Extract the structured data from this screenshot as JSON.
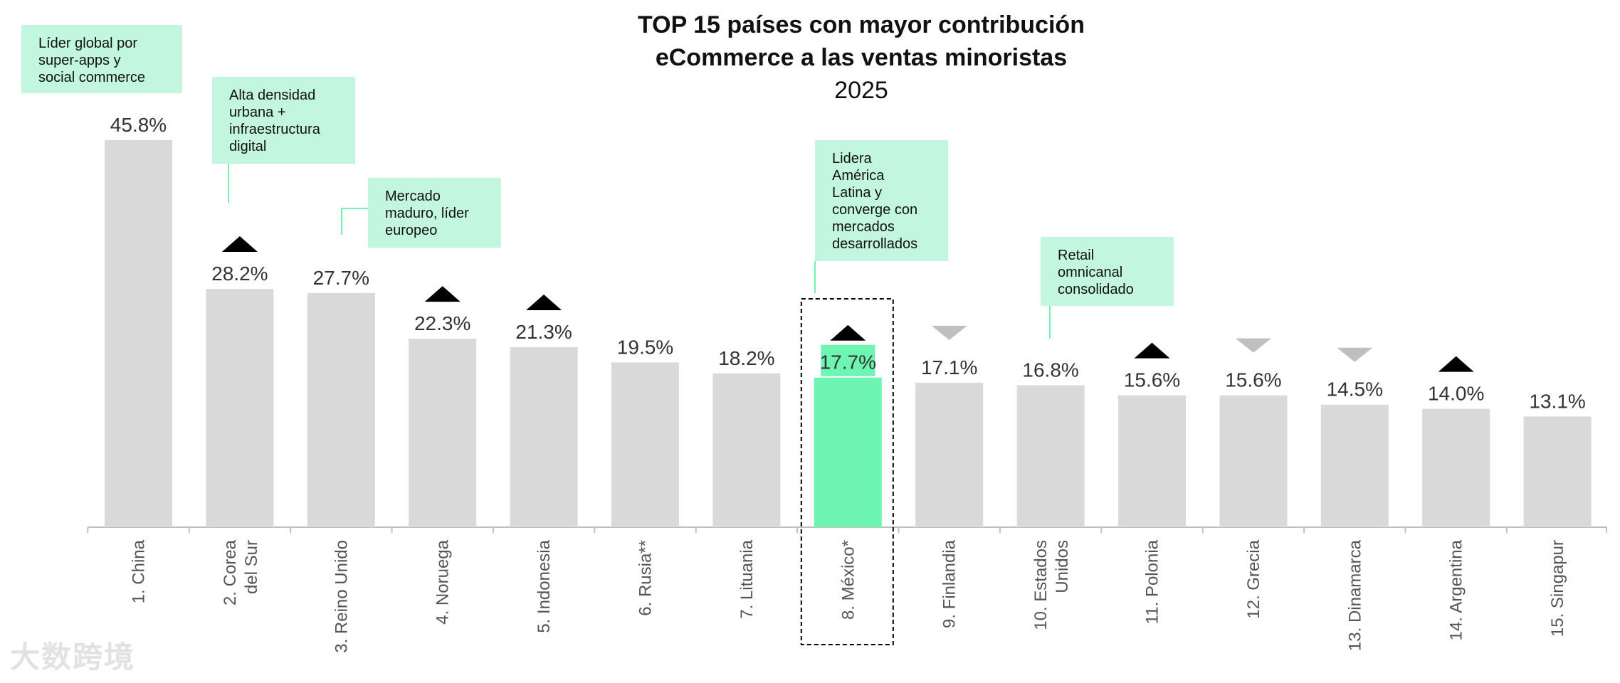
{
  "chart_data": {
    "type": "bar",
    "title": "TOP 15 países con mayor contribución eCommerce a las ventas minoristas",
    "title_lines": [
      "TOP 15 países con mayor contribución",
      "eCommerce a las ventas minoristas"
    ],
    "subtitle": "2025",
    "unit": "%",
    "ylim": [
      0,
      50
    ],
    "categories": [
      "1. China",
      "2. Corea del Sur",
      "3. Reino Unido",
      "4. Noruega",
      "5. Indonesia",
      "6. Rusia**",
      "7. Lituania",
      "8. México*",
      "9. Finlandia",
      "10. Estados Unidos",
      "11. Polonia",
      "12. Grecia",
      "13. Dinamarca",
      "14. Argentina",
      "15. Singapur"
    ],
    "values": [
      45.8,
      28.2,
      27.7,
      22.3,
      21.3,
      19.5,
      18.2,
      17.7,
      17.1,
      16.8,
      15.6,
      15.6,
      14.5,
      14.0,
      13.1
    ],
    "value_labels": [
      "45.8%",
      "28.2%",
      "27.7%",
      "22.3%",
      "21.3%",
      "19.5%",
      "18.2%",
      "17.7%",
      "17.1%",
      "16.8%",
      "15.6%",
      "15.6%",
      "14.5%",
      "14.0%",
      "13.1%"
    ],
    "trend": [
      "none",
      "up",
      "none",
      "up",
      "up",
      "none",
      "none",
      "up",
      "down",
      "none",
      "up",
      "down",
      "down",
      "up",
      "none"
    ],
    "highlight_index": 7,
    "colors": {
      "bar": "#d9d9d9",
      "highlight": "#6ef5b1",
      "up": "#000000",
      "down": "#bfbfbf",
      "note": "#c2f6de",
      "connector": "#6ef5b1"
    },
    "annotations": [
      {
        "bar": 0,
        "text": "Líder global por\nsuper-apps y\nsocial commerce"
      },
      {
        "bar": 1,
        "text": "Alta densidad\nurbana +\ninfraestructura\ndigital"
      },
      {
        "bar": 2,
        "text": "Mercado\nmaduro, líder\neuropeo"
      },
      {
        "bar": 7,
        "text": "Lidera\nAmérica\nLatina y\nconverge con\nmercados\ndesarrollados"
      },
      {
        "bar": 9,
        "text": "Retail\nomnicanal\nconsolidado"
      }
    ]
  },
  "watermark": "大数跨境"
}
